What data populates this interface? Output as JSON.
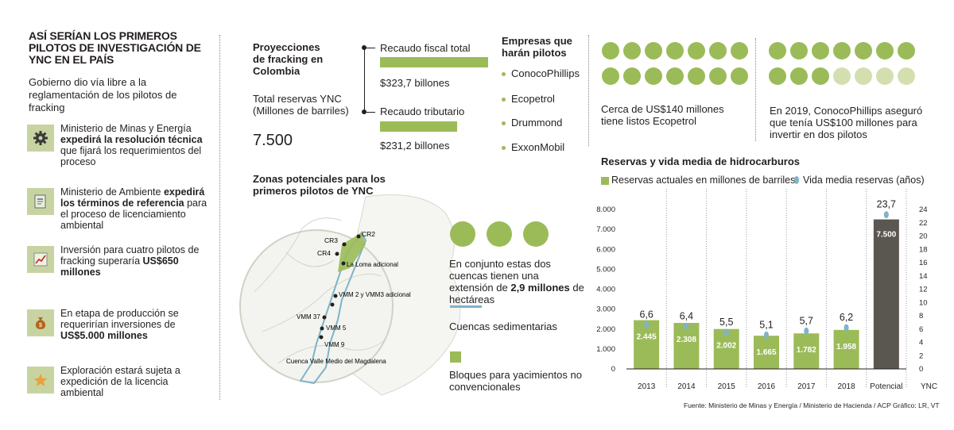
{
  "left": {
    "title": "ASÍ SERÍAN LOS PRIMEROS PILOTOS DE INVESTIGACIÓN DE YNC EN EL PAÍS",
    "intro": "Gobierno dio vía libre a la reglamentación de los pilotos de fracking",
    "steps": [
      {
        "icon": "gear-icon",
        "plain1": "Ministerio de Minas y Energía ",
        "bold": "expedirá la resolución técnica",
        "plain2": " que fijará los requerimientos del proceso"
      },
      {
        "icon": "document-icon",
        "plain1": "Ministerio de Ambiente ",
        "bold": "expedirá los términos de referencia",
        "plain2": " para el proceso de licenciamiento ambiental"
      },
      {
        "icon": "chart-up-icon",
        "plain1": "Inversión para cuatro pilotos de fracking superaría ",
        "bold": "US$650 millones",
        "plain2": ""
      },
      {
        "icon": "money-bag-icon",
        "plain1": "En etapa de producción se requerirían inversiones de ",
        "bold": "US$5.000 millones",
        "plain2": ""
      },
      {
        "icon": "star-icon",
        "plain1": "Exploración estará sujeta a expedición de la licencia ambiental",
        "bold": "",
        "plain2": ""
      }
    ]
  },
  "projections": {
    "title": "Proyecciones de fracking en Colombia",
    "reserves_label": "Total reservas YNC (Millones de barriles)",
    "reserves_value": "7.500",
    "fiscal_label": "Recaudo fiscal total",
    "fiscal_value": "$323,7 billones",
    "fiscal_amount": 323.7,
    "tax_label": "Recaudo tributario",
    "tax_value": "$231,2 billones",
    "tax_amount": 231.2
  },
  "companies": {
    "title": "Empresas que harán pilotos",
    "items": [
      "ConocoPhillips",
      "Ecopetrol",
      "Drummond",
      "ExxonMobil"
    ]
  },
  "map": {
    "title": "Zonas potenciales para los primeros pilotos de YNC",
    "labels": [
      "CR2",
      "CR3",
      "CR4",
      "La Loma adicional",
      "VMM 2 y VMM3 adicional",
      "VMM 37",
      "VMM 5",
      "VMM 9",
      "Cuenca Valle Medio del Magdalena"
    ],
    "extension_plain1": "En conjunto estas dos cuencas tienen una extensión de ",
    "extension_bold": "2,9 millones",
    "extension_plain2": " de hectáreas",
    "legend_basins": "Cuencas sedimentarias",
    "legend_blocks": "Bloques para yacimientos no convencionales",
    "colors": {
      "basin": "#7fb3c8",
      "block": "#9bbb59"
    }
  },
  "investments": {
    "ecopetrol_text": "Cerca de US$140 millones tiene listos Ecopetrol",
    "conoco_text": "En 2019, ConocoPhillips aseguró que tenía US$100 millones para invertir en dos pilotos"
  },
  "chart_data": {
    "type": "bar",
    "title": "Reservas y vida media de hidrocarburos",
    "categories": [
      "2013",
      "2014",
      "2015",
      "2016",
      "2017",
      "2018",
      "Potencial"
    ],
    "series": [
      {
        "name": "Reservas actuales en millones de barriles",
        "values": [
          2445,
          2308,
          2002,
          1665,
          1782,
          1958,
          7500
        ]
      },
      {
        "name": "Vida media reservas (años)",
        "values": [
          6.6,
          6.4,
          5.5,
          5.1,
          5.7,
          6.2,
          23.7
        ]
      }
    ],
    "bar_labels": [
      "2.445",
      "2.308",
      "2.002",
      "1.665",
      "1.782",
      "1.958",
      "7.500"
    ],
    "life_labels": [
      "6,6",
      "6,4",
      "5,5",
      "5,1",
      "5,7",
      "6,2",
      "23,7"
    ],
    "ylim_left": [
      0,
      8000
    ],
    "ylim_right": [
      0,
      24
    ],
    "yticks_left": [
      "0",
      "1.000",
      "2.000",
      "3.000",
      "4.000",
      "5.000",
      "6.000",
      "7.000",
      "8.000"
    ],
    "yticks_right": [
      "0",
      "2",
      "4",
      "6",
      "8",
      "10",
      "12",
      "14",
      "16",
      "18",
      "20",
      "22",
      "24"
    ],
    "right_axis_label": "YNC",
    "colors": {
      "bar": "#9bbb59",
      "potential": "#5a5650",
      "life_dot": "#7fb3c8"
    }
  },
  "source": "Fuente: Ministerio de Minas y Energía / Ministerio de Hacienda / ACP   Gráfico: LR, VT"
}
